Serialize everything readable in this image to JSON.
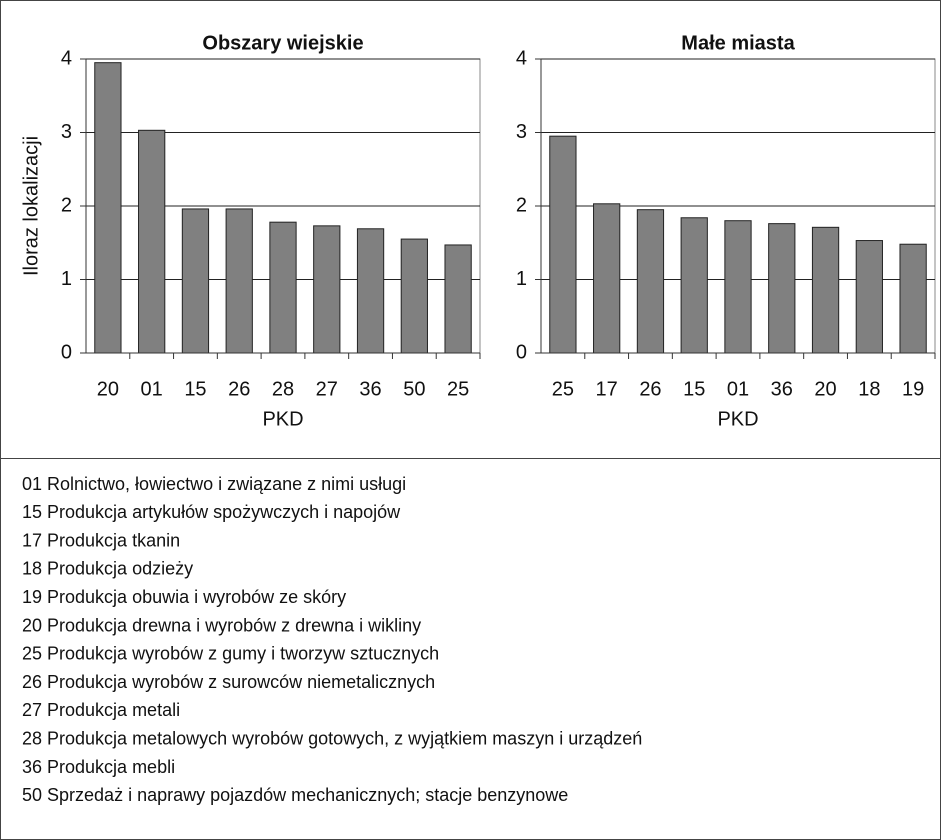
{
  "chart_data": [
    {
      "type": "bar",
      "title": "Obszary wiejskie",
      "ylabel": "Iloraz lokalizacji",
      "xlabel": "PKD",
      "categories": [
        "20",
        "01",
        "15",
        "26",
        "28",
        "27",
        "36",
        "50",
        "25"
      ],
      "values": [
        3.95,
        3.03,
        1.96,
        1.96,
        1.78,
        1.73,
        1.69,
        1.55,
        1.47
      ],
      "color": "#808080",
      "ylim": [
        0,
        4
      ],
      "yticks": [
        0,
        1,
        2,
        3,
        4
      ],
      "grid": true
    },
    {
      "type": "bar",
      "title": "Małe miasta",
      "xlabel": "PKD",
      "categories": [
        "25",
        "17",
        "26",
        "15",
        "01",
        "36",
        "20",
        "18",
        "19"
      ],
      "values": [
        2.95,
        2.03,
        1.95,
        1.84,
        1.8,
        1.76,
        1.71,
        1.53,
        1.48
      ],
      "color": "#808080",
      "ylim": [
        0,
        4
      ],
      "yticks": [
        0,
        1,
        2,
        3,
        4
      ],
      "grid": true
    }
  ],
  "notes": [
    "01 Rolnictwo, łowiectwo i związane z nimi usługi",
    "15 Produkcja artykułów spożywczych i napojów",
    "17 Produkcja tkanin",
    "18 Produkcja odzieży",
    "19 Produkcja obuwia i wyrobów ze skóry",
    "20 Produkcja drewna i wyrobów z drewna i wikliny",
    "25 Produkcja wyrobów z gumy i tworzyw sztucznych",
    "26 Produkcja wyrobów z surowców niemetalicznych",
    "27 Produkcja metali",
    "28 Produkcja metalowych wyrobów gotowych, z wyjątkiem maszyn i urządzeń",
    "36 Produkcja mebli",
    "50 Sprzedaż i naprawy pojazdów mechanicznych; stacje benzynowe"
  ]
}
